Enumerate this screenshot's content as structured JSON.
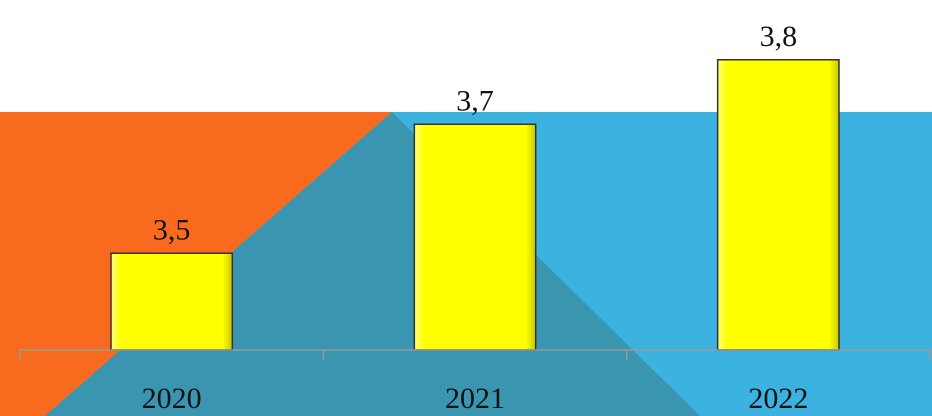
{
  "chart_data": {
    "type": "bar",
    "categories": [
      "2020",
      "2021",
      "2022"
    ],
    "values": [
      3.5,
      3.7,
      3.8
    ],
    "value_labels": [
      "3,5",
      "3,7",
      "3,8"
    ],
    "color": "#ffff00",
    "ylim": [
      3.35,
      3.9
    ]
  }
}
